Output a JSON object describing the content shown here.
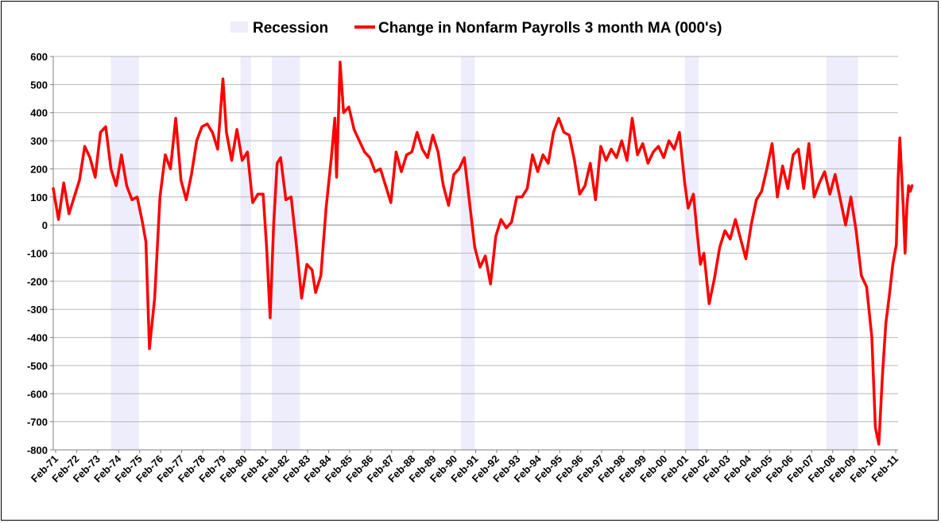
{
  "chart_data": {
    "type": "line",
    "title": "",
    "xlabel": "",
    "ylabel": "",
    "ylim": [
      -800,
      600
    ],
    "yticks": [
      600,
      500,
      400,
      300,
      200,
      100,
      0,
      -100,
      -200,
      -300,
      -400,
      -500,
      -600,
      -700,
      -800
    ],
    "xlim": [
      "1971-02",
      "2011-05"
    ],
    "xtick_labels": [
      "Feb-71",
      "Feb-72",
      "Feb-73",
      "Feb-74",
      "Feb-75",
      "Feb-76",
      "Feb-77",
      "Feb-78",
      "Feb-79",
      "Feb-80",
      "Feb-81",
      "Feb-82",
      "Feb-83",
      "Feb-84",
      "Feb-85",
      "Feb-86",
      "Feb-87",
      "Feb-88",
      "Feb-89",
      "Feb-90",
      "Feb-91",
      "Feb-92",
      "Feb-93",
      "Feb-94",
      "Feb-95",
      "Feb-96",
      "Feb-97",
      "Feb-98",
      "Feb-99",
      "Feb-00",
      "Feb-01",
      "Feb-02",
      "Feb-03",
      "Feb-04",
      "Feb-05",
      "Feb-06",
      "Feb-07",
      "Feb-08",
      "Feb-09",
      "Feb-10",
      "Feb-11"
    ],
    "grid": true,
    "legend": "top-center",
    "recession_label": "Recession",
    "recession_color": "#ededfc",
    "recessions": [
      [
        "1973-11",
        "1975-03"
      ],
      [
        "1980-01",
        "1980-07"
      ],
      [
        "1981-07",
        "1982-11"
      ],
      [
        "1990-07",
        "1991-03"
      ],
      [
        "2001-03",
        "2001-11"
      ],
      [
        "2007-12",
        "2009-06"
      ]
    ],
    "series": [
      {
        "name": "Change in Nonfarm Payrolls 3 month MA (000's)",
        "color": "#ff0000",
        "points": [
          [
            "1971-02",
            130
          ],
          [
            "1971-05",
            20
          ],
          [
            "1971-08",
            150
          ],
          [
            "1971-11",
            40
          ],
          [
            "1972-02",
            100
          ],
          [
            "1972-05",
            160
          ],
          [
            "1972-08",
            280
          ],
          [
            "1972-11",
            240
          ],
          [
            "1973-02",
            170
          ],
          [
            "1973-05",
            330
          ],
          [
            "1973-08",
            350
          ],
          [
            "1973-11",
            200
          ],
          [
            "1974-02",
            140
          ],
          [
            "1974-05",
            250
          ],
          [
            "1974-08",
            140
          ],
          [
            "1974-11",
            90
          ],
          [
            "1975-02",
            100
          ],
          [
            "1975-05",
            10
          ],
          [
            "1975-07",
            -60
          ],
          [
            "1975-09",
            -440
          ],
          [
            "1975-12",
            -260
          ],
          [
            "1976-03",
            100
          ],
          [
            "1976-06",
            250
          ],
          [
            "1976-09",
            200
          ],
          [
            "1976-12",
            380
          ],
          [
            "1977-03",
            160
          ],
          [
            "1977-06",
            90
          ],
          [
            "1977-09",
            180
          ],
          [
            "1977-12",
            300
          ],
          [
            "1978-03",
            350
          ],
          [
            "1978-06",
            360
          ],
          [
            "1978-09",
            330
          ],
          [
            "1978-12",
            270
          ],
          [
            "1979-03",
            520
          ],
          [
            "1979-05",
            330
          ],
          [
            "1979-08",
            230
          ],
          [
            "1979-11",
            340
          ],
          [
            "1980-02",
            230
          ],
          [
            "1980-05",
            260
          ],
          [
            "1980-08",
            80
          ],
          [
            "1980-11",
            110
          ],
          [
            "1981-02",
            110
          ],
          [
            "1981-04",
            -80
          ],
          [
            "1981-06",
            -330
          ],
          [
            "1981-08",
            0
          ],
          [
            "1981-10",
            220
          ],
          [
            "1981-12",
            240
          ],
          [
            "1982-03",
            90
          ],
          [
            "1982-06",
            100
          ],
          [
            "1982-09",
            -70
          ],
          [
            "1982-12",
            -260
          ],
          [
            "1983-03",
            -140
          ],
          [
            "1983-06",
            -160
          ],
          [
            "1983-08",
            -240
          ],
          [
            "1983-11",
            -180
          ],
          [
            "1984-02",
            60
          ],
          [
            "1984-05",
            240
          ],
          [
            "1984-07",
            380
          ],
          [
            "1984-08",
            170
          ],
          [
            "1984-10",
            580
          ],
          [
            "1984-12",
            400
          ],
          [
            "1985-03",
            420
          ],
          [
            "1985-06",
            340
          ],
          [
            "1985-09",
            300
          ],
          [
            "1985-12",
            260
          ],
          [
            "1986-03",
            240
          ],
          [
            "1986-06",
            190
          ],
          [
            "1986-09",
            200
          ],
          [
            "1986-12",
            140
          ],
          [
            "1987-03",
            80
          ],
          [
            "1987-06",
            260
          ],
          [
            "1987-09",
            190
          ],
          [
            "1987-12",
            250
          ],
          [
            "1988-03",
            260
          ],
          [
            "1988-06",
            330
          ],
          [
            "1988-09",
            270
          ],
          [
            "1988-12",
            240
          ],
          [
            "1989-03",
            320
          ],
          [
            "1989-06",
            260
          ],
          [
            "1989-09",
            140
          ],
          [
            "1989-12",
            70
          ],
          [
            "1990-03",
            180
          ],
          [
            "1990-06",
            200
          ],
          [
            "1990-09",
            240
          ],
          [
            "1990-12",
            80
          ],
          [
            "1991-03",
            -80
          ],
          [
            "1991-06",
            -150
          ],
          [
            "1991-09",
            -110
          ],
          [
            "1991-12",
            -210
          ],
          [
            "1992-03",
            -40
          ],
          [
            "1992-06",
            20
          ],
          [
            "1992-09",
            -10
          ],
          [
            "1992-12",
            10
          ],
          [
            "1993-03",
            100
          ],
          [
            "1993-06",
            100
          ],
          [
            "1993-09",
            130
          ],
          [
            "1993-12",
            250
          ],
          [
            "1994-03",
            190
          ],
          [
            "1994-06",
            250
          ],
          [
            "1994-09",
            220
          ],
          [
            "1994-12",
            330
          ],
          [
            "1995-03",
            380
          ],
          [
            "1995-06",
            330
          ],
          [
            "1995-09",
            320
          ],
          [
            "1995-12",
            230
          ],
          [
            "1996-03",
            110
          ],
          [
            "1996-06",
            140
          ],
          [
            "1996-09",
            220
          ],
          [
            "1996-12",
            90
          ],
          [
            "1997-03",
            280
          ],
          [
            "1997-06",
            230
          ],
          [
            "1997-09",
            270
          ],
          [
            "1997-12",
            240
          ],
          [
            "1998-03",
            300
          ],
          [
            "1998-06",
            230
          ],
          [
            "1998-09",
            380
          ],
          [
            "1998-12",
            250
          ],
          [
            "1999-03",
            290
          ],
          [
            "1999-06",
            220
          ],
          [
            "1999-09",
            260
          ],
          [
            "1999-12",
            280
          ],
          [
            "2000-03",
            240
          ],
          [
            "2000-06",
            300
          ],
          [
            "2000-09",
            270
          ],
          [
            "2000-12",
            330
          ],
          [
            "2001-03",
            150
          ],
          [
            "2001-05",
            60
          ],
          [
            "2001-08",
            110
          ],
          [
            "2001-10",
            -20
          ],
          [
            "2001-12",
            -140
          ],
          [
            "2002-02",
            -100
          ],
          [
            "2002-05",
            -280
          ],
          [
            "2002-08",
            -190
          ],
          [
            "2002-11",
            -80
          ],
          [
            "2003-02",
            -20
          ],
          [
            "2003-05",
            -50
          ],
          [
            "2003-08",
            20
          ],
          [
            "2003-11",
            -50
          ],
          [
            "2004-02",
            -120
          ],
          [
            "2004-05",
            0
          ],
          [
            "2004-08",
            90
          ],
          [
            "2004-11",
            120
          ],
          [
            "2005-02",
            200
          ],
          [
            "2005-05",
            290
          ],
          [
            "2005-08",
            100
          ],
          [
            "2005-11",
            210
          ],
          [
            "2006-02",
            130
          ],
          [
            "2006-05",
            250
          ],
          [
            "2006-08",
            270
          ],
          [
            "2006-11",
            130
          ],
          [
            "2007-02",
            290
          ],
          [
            "2007-05",
            100
          ],
          [
            "2007-08",
            150
          ],
          [
            "2007-11",
            190
          ],
          [
            "2008-02",
            110
          ],
          [
            "2008-05",
            180
          ],
          [
            "2008-08",
            90
          ],
          [
            "2008-11",
            0
          ],
          [
            "2009-02",
            100
          ],
          [
            "2009-05",
            -20
          ],
          [
            "2009-08",
            -180
          ],
          [
            "2009-11",
            -220
          ],
          [
            "2010-02",
            -400
          ],
          [
            "2010-04",
            -720
          ],
          [
            "2010-06",
            -780
          ],
          [
            "2010-08",
            -540
          ],
          [
            "2010-10",
            -350
          ],
          [
            "2010-12",
            -250
          ],
          [
            "2011-02",
            -140
          ],
          [
            "2011-04",
            -70
          ],
          [
            "2011-05",
            160
          ],
          [
            "2011-06",
            310
          ],
          [
            "2011-08",
            60
          ],
          [
            "2011-09",
            -100
          ],
          [
            "2011-10",
            60
          ],
          [
            "2011-11",
            140
          ],
          [
            "2011-12",
            120
          ],
          [
            "2012-01",
            140
          ]
        ]
      }
    ]
  }
}
